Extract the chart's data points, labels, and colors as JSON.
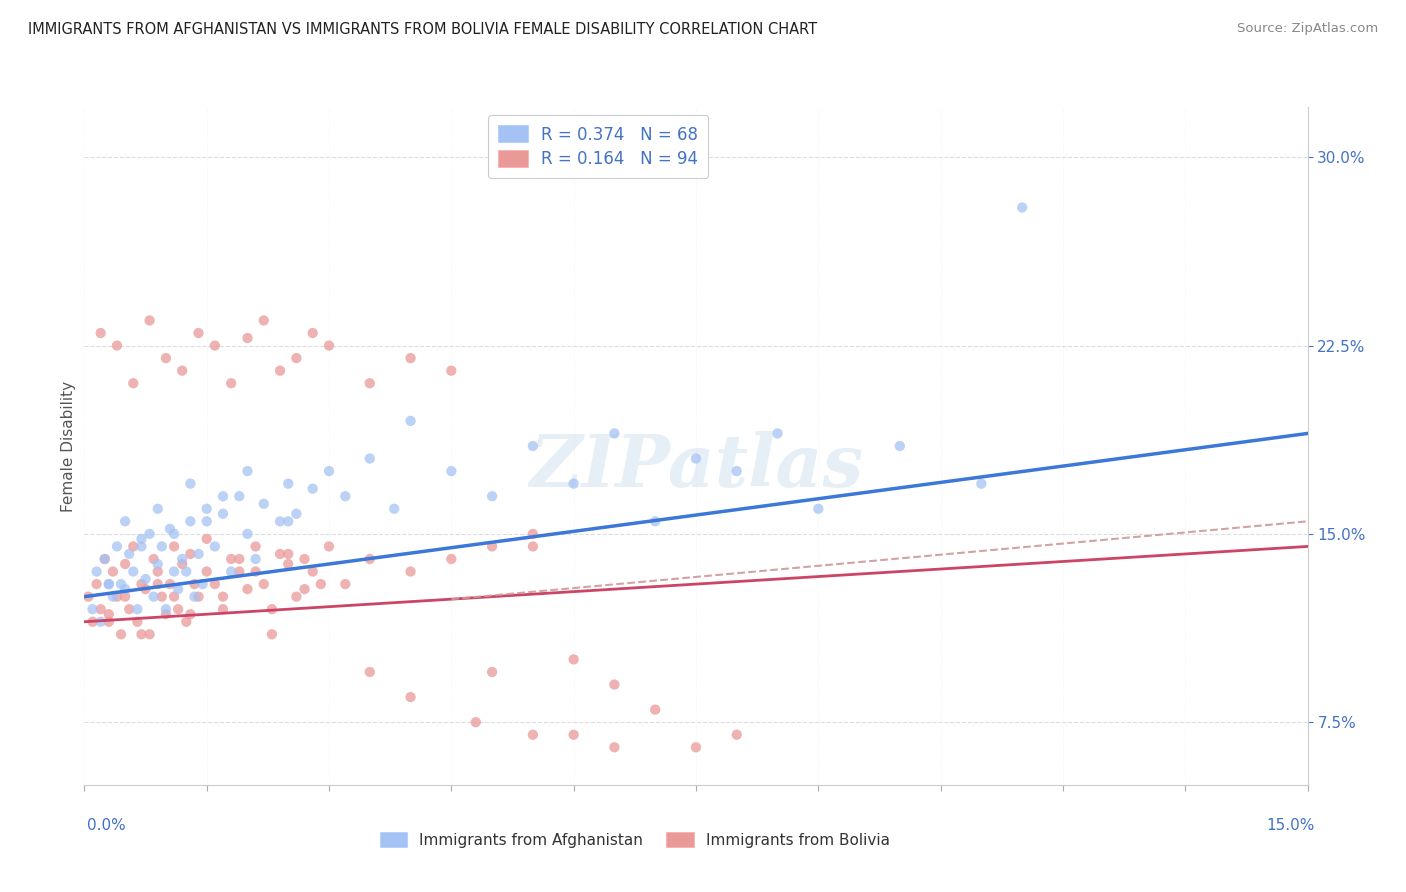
{
  "title": "IMMIGRANTS FROM AFGHANISTAN VS IMMIGRANTS FROM BOLIVIA FEMALE DISABILITY CORRELATION CHART",
  "source": "Source: ZipAtlas.com",
  "ylabel_text": "Female Disability",
  "legend_afghanistan": "R = 0.374   N = 68",
  "legend_bolivia": "R = 0.164   N = 94",
  "legend_label_afg": "Immigrants from Afghanistan",
  "legend_label_bol": "Immigrants from Bolivia",
  "color_afghanistan": "#a4c2f4",
  "color_bolivia": "#ea9999",
  "color_trendline_afg": "#3c78d8",
  "color_trendline_bol": "#cc4466",
  "color_trendline_bol_dashed": "#cc9999",
  "color_axis_labels": "#4472c4",
  "xlim": [
    0.0,
    15.0
  ],
  "ylim": [
    5.0,
    32.0
  ],
  "yticks": [
    7.5,
    15.0,
    22.5,
    30.0
  ],
  "afg_x": [
    0.1,
    0.15,
    0.2,
    0.25,
    0.3,
    0.35,
    0.4,
    0.45,
    0.5,
    0.55,
    0.6,
    0.65,
    0.7,
    0.75,
    0.8,
    0.85,
    0.9,
    0.95,
    1.0,
    1.05,
    1.1,
    1.15,
    1.2,
    1.25,
    1.3,
    1.35,
    1.4,
    1.45,
    1.5,
    1.6,
    1.7,
    1.8,
    1.9,
    2.0,
    2.1,
    2.2,
    2.4,
    2.5,
    2.6,
    2.8,
    3.0,
    3.2,
    3.5,
    3.8,
    4.0,
    4.5,
    5.0,
    5.5,
    6.0,
    6.5,
    7.0,
    7.5,
    8.0,
    8.5,
    9.0,
    10.0,
    11.0,
    11.5,
    0.3,
    0.5,
    0.7,
    0.9,
    1.1,
    1.3,
    1.5,
    1.7,
    2.0,
    2.5
  ],
  "afg_y": [
    12.0,
    13.5,
    11.5,
    14.0,
    13.0,
    12.5,
    14.5,
    13.0,
    12.8,
    14.2,
    13.5,
    12.0,
    14.8,
    13.2,
    15.0,
    12.5,
    13.8,
    14.5,
    12.0,
    15.2,
    13.5,
    12.8,
    14.0,
    13.5,
    15.5,
    12.5,
    14.2,
    13.0,
    16.0,
    14.5,
    15.8,
    13.5,
    16.5,
    15.0,
    14.0,
    16.2,
    15.5,
    17.0,
    15.8,
    16.8,
    17.5,
    16.5,
    18.0,
    16.0,
    19.5,
    17.5,
    16.5,
    18.5,
    17.0,
    19.0,
    15.5,
    18.0,
    17.5,
    19.0,
    16.0,
    18.5,
    17.0,
    28.0,
    13.0,
    15.5,
    14.5,
    16.0,
    15.0,
    17.0,
    15.5,
    16.5,
    17.5,
    15.5
  ],
  "bol_x": [
    0.05,
    0.1,
    0.15,
    0.2,
    0.25,
    0.3,
    0.35,
    0.4,
    0.45,
    0.5,
    0.55,
    0.6,
    0.65,
    0.7,
    0.75,
    0.8,
    0.85,
    0.9,
    0.95,
    1.0,
    1.05,
    1.1,
    1.15,
    1.2,
    1.25,
    1.3,
    1.35,
    1.4,
    1.5,
    1.6,
    1.7,
    1.8,
    1.9,
    2.0,
    2.1,
    2.2,
    2.3,
    2.4,
    2.5,
    2.6,
    2.7,
    2.8,
    3.0,
    3.2,
    3.5,
    4.0,
    4.5,
    5.0,
    5.5,
    6.0,
    6.5,
    7.0,
    0.2,
    0.4,
    0.6,
    0.8,
    1.0,
    1.2,
    1.4,
    1.6,
    1.8,
    2.0,
    2.2,
    2.4,
    2.6,
    2.8,
    3.0,
    3.5,
    4.0,
    4.5,
    5.0,
    5.5,
    6.0,
    7.5,
    0.3,
    0.5,
    0.7,
    0.9,
    1.1,
    1.3,
    1.5,
    1.7,
    1.9,
    2.1,
    2.3,
    2.5,
    2.7,
    2.9,
    3.5,
    4.0,
    4.8,
    5.5,
    6.5,
    8.0
  ],
  "bol_y": [
    12.5,
    11.5,
    13.0,
    12.0,
    14.0,
    11.8,
    13.5,
    12.5,
    11.0,
    13.8,
    12.0,
    14.5,
    11.5,
    13.0,
    12.8,
    11.0,
    14.0,
    13.5,
    12.5,
    11.8,
    13.0,
    14.5,
    12.0,
    13.8,
    11.5,
    14.2,
    13.0,
    12.5,
    14.8,
    13.0,
    12.5,
    14.0,
    13.5,
    12.8,
    14.5,
    13.0,
    12.0,
    14.2,
    13.8,
    12.5,
    14.0,
    13.5,
    14.5,
    13.0,
    14.0,
    13.5,
    14.0,
    9.5,
    14.5,
    10.0,
    9.0,
    8.0,
    23.0,
    22.5,
    21.0,
    23.5,
    22.0,
    21.5,
    23.0,
    22.5,
    21.0,
    22.8,
    23.5,
    21.5,
    22.0,
    23.0,
    22.5,
    21.0,
    22.0,
    21.5,
    14.5,
    15.0,
    7.0,
    6.5,
    11.5,
    12.5,
    11.0,
    13.0,
    12.5,
    11.8,
    13.5,
    12.0,
    14.0,
    13.5,
    11.0,
    14.2,
    12.8,
    13.0,
    9.5,
    8.5,
    7.5,
    7.0,
    6.5,
    7.0
  ]
}
